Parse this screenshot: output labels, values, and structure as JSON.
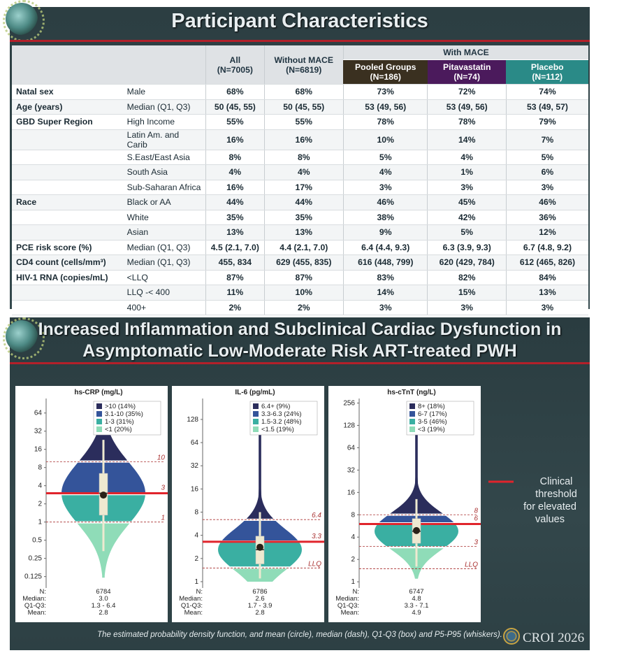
{
  "slide1": {
    "title": "Participant Characteristics",
    "header": {
      "group_label": "With MACE",
      "columns": [
        {
          "label": "All",
          "n": "(N=7005)"
        },
        {
          "label": "Without MACE",
          "n": "(N=6819)"
        },
        {
          "label": "Pooled Groups",
          "n": "(N=186)"
        },
        {
          "label": "Pitavastatin",
          "n": "(N=74)"
        },
        {
          "label": "Placebo",
          "n": "(N=112)"
        }
      ]
    },
    "rows": [
      {
        "label": "Natal sex",
        "sub": "Male",
        "v": [
          "68%",
          "68%",
          "73%",
          "72%",
          "74%"
        ]
      },
      {
        "label": "Age (years)",
        "sub": "Median (Q1, Q3)",
        "v": [
          "50 (45, 55)",
          "50 (45, 55)",
          "53 (49, 56)",
          "53 (49, 56)",
          "53 (49, 57)"
        ]
      },
      {
        "label": "GBD Super Region",
        "sub": "High Income",
        "v": [
          "55%",
          "55%",
          "78%",
          "78%",
          "79%"
        ]
      },
      {
        "label": "",
        "sub": "Latin Am. and Carib",
        "v": [
          "16%",
          "16%",
          "10%",
          "14%",
          "7%"
        ]
      },
      {
        "label": "",
        "sub": "S.East/East Asia",
        "v": [
          "8%",
          "8%",
          "5%",
          "4%",
          "5%"
        ]
      },
      {
        "label": "",
        "sub": "South Asia",
        "v": [
          "4%",
          "4%",
          "4%",
          "1%",
          "6%"
        ]
      },
      {
        "label": "",
        "sub": "Sub-Saharan Africa",
        "v": [
          "16%",
          "17%",
          "3%",
          "3%",
          "3%"
        ]
      },
      {
        "label": "Race",
        "sub": "Black or AA",
        "v": [
          "44%",
          "44%",
          "46%",
          "45%",
          "46%"
        ]
      },
      {
        "label": "",
        "sub": "White",
        "v": [
          "35%",
          "35%",
          "38%",
          "42%",
          "36%"
        ]
      },
      {
        "label": "",
        "sub": "Asian",
        "v": [
          "13%",
          "13%",
          "9%",
          "5%",
          "12%"
        ]
      },
      {
        "label": "PCE risk score (%)",
        "sub": "Median (Q1, Q3)",
        "v": [
          "4.5 (2.1, 7.0)",
          "4.4 (2.1, 7.0)",
          "6.4 (4.4, 9.3)",
          "6.3 (3.9, 9.3)",
          "6.7 (4.8, 9.2)"
        ]
      },
      {
        "label": "CD4 count (cells/mm³)",
        "sub": "Median (Q1, Q3)",
        "v": [
          "455, 834",
          "629 (455, 835)",
          "616 (448, 799)",
          "620 (429, 784)",
          "612 (465, 826)"
        ]
      },
      {
        "label": "HIV-1 RNA (copies/mL)",
        "sub": "<LLQ",
        "v": [
          "87%",
          "87%",
          "83%",
          "82%",
          "84%"
        ]
      },
      {
        "label": "",
        "sub": "LLQ -< 400",
        "v": [
          "11%",
          "10%",
          "14%",
          "15%",
          "13%"
        ]
      },
      {
        "label": "",
        "sub": "400+",
        "v": [
          "2%",
          "2%",
          "3%",
          "3%",
          "3%"
        ]
      }
    ]
  },
  "slide2": {
    "title_line1": "Increased Inflammation and Subclinical Cardiac Dysfunction in",
    "title_line2": "Asymptomatic Low-Moderate Risk ART-treated PWH",
    "legend_label_line1": "Clinical threshold",
    "legend_label_line2": "for elevated values",
    "caption": "The estimated probability density function, and mean (circle), median (dash), Q1-Q3 (box) and P5-P95 (whiskers).",
    "logo_text": "CROI 2026",
    "stat_labels": [
      "N:",
      "Median:",
      "Q1-Q3:",
      "Mean:"
    ]
  },
  "chart_data": [
    {
      "type": "violin",
      "title": "hs-CRP (mg/L)",
      "yscale": "log2",
      "ylim": [
        0.09,
        100
      ],
      "yticks": [
        "0.125",
        "0.25",
        "0.5",
        "1",
        "2",
        "4",
        "8",
        "16",
        "32",
        "64"
      ],
      "ytick_values": [
        0.125,
        0.25,
        0.5,
        1,
        2,
        4,
        8,
        16,
        32,
        64
      ],
      "threshold": 3,
      "threshold_label": "3",
      "cutoffs": [
        {
          "value": 10,
          "label": "10"
        },
        {
          "value": 1,
          "label": "1"
        }
      ],
      "legend": [
        {
          "label": ">10 (14%)",
          "color": "#2b2d5c"
        },
        {
          "label": "3.1-10 (35%)",
          "color": "#34549a"
        },
        {
          "label": "1-3 (31%)",
          "color": "#3aafa2"
        },
        {
          "label": "<1 (20%)",
          "color": "#8fdcb8"
        }
      ],
      "stats": {
        "n": "6784",
        "median": "3.0",
        "q1q3": "1.3 - 6.4",
        "mean": "2.8"
      },
      "median": 3.0,
      "q1": 1.3,
      "q3": 6.4,
      "mean": 2.8,
      "p5": 0.33,
      "p95": 23,
      "range": [
        0.12,
        90
      ]
    },
    {
      "type": "violin",
      "title": "IL-6 (pg/mL)",
      "yscale": "log2",
      "ylim": [
        0.9,
        220
      ],
      "yticks": [
        "1",
        "2",
        "4",
        "8",
        "16",
        "32",
        "64",
        "128"
      ],
      "ytick_values": [
        1,
        2,
        4,
        8,
        16,
        32,
        64,
        128
      ],
      "threshold": 3.3,
      "threshold_label": "3.3",
      "cutoffs": [
        {
          "value": 6.4,
          "label": "6.4"
        },
        {
          "value": 1.5,
          "label": "LLQ"
        }
      ],
      "legend": [
        {
          "label": "6.4+ (9%)",
          "color": "#2b2d5c"
        },
        {
          "label": "3.3-6.3 (24%)",
          "color": "#34549a"
        },
        {
          "label": "1.5-3.2 (48%)",
          "color": "#3aafa2"
        },
        {
          "label": "<1.5 (19%)",
          "color": "#8fdcb8"
        }
      ],
      "stats": {
        "n": "6786",
        "median": "2.6",
        "q1q3": "1.7 - 3.9",
        "mean": "2.8"
      },
      "median": 2.6,
      "q1": 1.7,
      "q3": 3.9,
      "mean": 2.8,
      "p5": 1.1,
      "p95": 8,
      "range": [
        1.0,
        180
      ]
    },
    {
      "type": "violin",
      "title": "hs-cTnT (ng/L)",
      "yscale": "log2",
      "ylim": [
        0.9,
        270
      ],
      "yticks": [
        "1",
        "2",
        "4",
        "8",
        "16",
        "32",
        "64",
        "128",
        "256"
      ],
      "ytick_values": [
        1,
        2,
        4,
        8,
        16,
        32,
        64,
        128,
        256
      ],
      "threshold": 6,
      "threshold_label": "6",
      "cutoffs": [
        {
          "value": 8,
          "label": "8"
        },
        {
          "value": 3,
          "label": "3"
        },
        {
          "value": 1.5,
          "label": "LLQ"
        }
      ],
      "legend": [
        {
          "label": "8+ (18%)",
          "color": "#2b2d5c"
        },
        {
          "label": "6-7 (17%)",
          "color": "#34549a"
        },
        {
          "label": "3-5 (46%)",
          "color": "#3aafa2"
        },
        {
          "label": "<3 (19%)",
          "color": "#8fdcb8"
        }
      ],
      "stats": {
        "n": "6747",
        "median": "4.8",
        "q1q3": "3.3 - 7.1",
        "mean": "4.9"
      },
      "median": 4.8,
      "q1": 3.3,
      "q3": 7.1,
      "mean": 4.9,
      "p5": 1.6,
      "p95": 13,
      "range": [
        1.1,
        240
      ]
    }
  ]
}
